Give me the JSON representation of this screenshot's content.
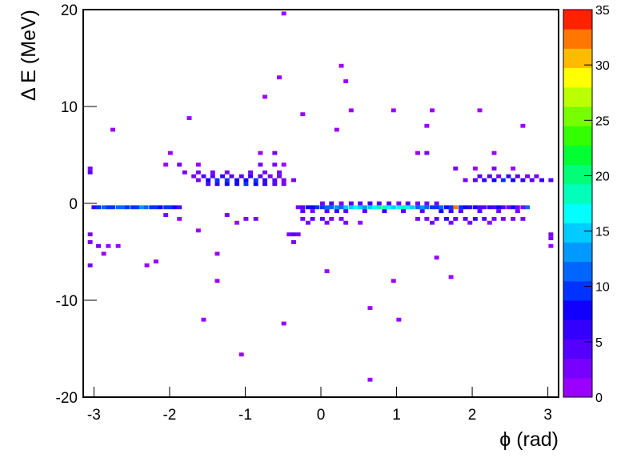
{
  "chart_data": {
    "type": "heatmap",
    "xlabel": "ϕ (rad)",
    "ylabel": "Δ E (MeV)",
    "xlim": [
      -3.1416,
      3.1416
    ],
    "xticks": [
      -3,
      -2,
      -1,
      0,
      1,
      2,
      3
    ],
    "ylim": [
      -20,
      20
    ],
    "yticks": [
      -20,
      -10,
      0,
      10,
      20
    ],
    "zlim": [
      0,
      35
    ],
    "zticks": [
      0,
      5,
      10,
      15,
      20,
      25,
      30,
      35
    ],
    "palette": [
      "#9900ff",
      "#7700ff",
      "#5500ff",
      "#3300ff",
      "#1100ff",
      "#0033ff",
      "#0066ff",
      "#0099ff",
      "#00ccff",
      "#00ffff",
      "#00ffbb",
      "#00ff77",
      "#00ff33",
      "#33ff00",
      "#77ff00",
      "#bbff00",
      "#ffff00",
      "#ffbb00",
      "#ff7700",
      "#ff2200"
    ],
    "x": [
      -3.0,
      -2.94,
      -2.87,
      -2.81,
      -2.75,
      -2.68,
      -2.62,
      -2.56,
      -2.49,
      -2.43,
      -2.37,
      -2.31,
      -2.24,
      -2.18,
      -2.12,
      -2.05,
      -1.99,
      -1.93,
      -1.87,
      -0.3,
      -0.24,
      -0.17,
      -0.11,
      -0.05,
      0.02,
      0.08,
      0.14,
      0.21,
      0.27,
      0.33,
      0.4,
      0.46,
      0.52,
      0.58,
      0.65,
      0.71,
      0.77,
      0.84,
      0.9,
      0.96,
      1.03,
      1.09,
      1.15,
      1.21,
      1.28,
      1.34,
      1.4,
      1.47,
      1.53,
      1.59,
      1.66,
      1.72,
      1.78,
      1.85,
      1.91,
      1.97,
      2.04,
      2.1,
      2.16,
      2.23,
      2.29,
      2.35,
      2.41,
      2.48,
      2.54,
      2.6,
      2.67,
      2.73,
      0.02,
      0.14,
      0.27,
      0.4,
      0.52,
      0.65,
      0.77,
      0.9,
      1.03,
      1.15,
      1.28,
      1.4,
      1.53,
      -0.24,
      -0.11,
      0.08,
      0.21,
      0.33,
      0.58,
      0.84,
      1.09,
      1.34,
      1.59,
      1.72,
      1.85,
      2.1,
      2.35,
      2.6,
      -0.24,
      -0.11,
      0.02,
      0.14,
      0.27,
      1.28,
      1.4,
      1.53,
      1.66,
      1.78,
      1.91,
      2.04,
      2.16,
      2.29,
      2.41,
      2.54,
      2.67,
      -0.17,
      0.08,
      0.33,
      0.52,
      1.47,
      1.72,
      1.97,
      2.23,
      -1.49,
      -1.37,
      -1.24,
      -1.11,
      -0.99,
      -0.86,
      -0.74,
      -0.61,
      -0.49,
      -1.62,
      -1.49,
      -1.37,
      -1.24,
      -1.11,
      -0.99,
      -0.86,
      -0.74,
      -0.61,
      -0.49,
      -0.36,
      -1.68,
      -1.55,
      -1.43,
      -1.3,
      -1.18,
      -1.05,
      -0.93,
      -0.8,
      -0.67,
      -0.55,
      -1.8,
      -1.62,
      -1.43,
      -1.24,
      -0.93,
      -0.74,
      -0.55,
      -2.05,
      -1.87,
      -1.62,
      -0.8,
      -0.61,
      -0.49,
      -0.8,
      -0.61,
      -1.99,
      1.91,
      2.04,
      2.16,
      2.29,
      2.41,
      2.54,
      2.67,
      2.79,
      2.92,
      3.04,
      2.1,
      2.23,
      2.35,
      2.48,
      2.6,
      2.73,
      2.85,
      1.78,
      2.04,
      2.29,
      2.54,
      1.28,
      1.4,
      2.29,
      -3.05,
      -3.05,
      -3.05,
      -3.05,
      3.04,
      3.04,
      3.04,
      -2.94,
      -2.81,
      -2.68,
      -0.42,
      -0.36,
      -0.3,
      -0.36,
      -1.24,
      -1.11,
      -0.99,
      -0.86,
      -2.05,
      -1.87,
      -1.62,
      -2.3,
      -2.18,
      -1.37,
      -1.37,
      -1.55,
      -1.05,
      -0.49,
      0.08,
      0.65,
      0.65,
      0.96,
      1.03,
      1.53,
      1.72,
      -3.05,
      -2.87,
      -0.49,
      -0.55,
      0.27,
      0.33,
      -0.74,
      0.4,
      -0.24,
      -1.74,
      0.96,
      1.47,
      2.1,
      2.67,
      -2.75,
      0.21,
      1.4
    ],
    "y": [
      -0.4,
      -0.4,
      -0.4,
      -0.4,
      -0.4,
      -0.4,
      -0.4,
      -0.4,
      -0.4,
      -0.4,
      -0.4,
      -0.4,
      -0.4,
      -0.4,
      -0.4,
      -0.4,
      -0.4,
      -0.4,
      -0.4,
      -0.4,
      -0.4,
      -0.4,
      -0.4,
      -0.4,
      -0.4,
      -0.4,
      -0.4,
      -0.4,
      -0.4,
      -0.4,
      -0.4,
      -0.4,
      -0.4,
      -0.4,
      -0.4,
      -0.4,
      -0.4,
      -0.4,
      -0.4,
      -0.4,
      -0.4,
      -0.4,
      -0.4,
      -0.4,
      -0.4,
      -0.4,
      -0.4,
      -0.4,
      -0.4,
      -0.4,
      -0.4,
      -0.4,
      -0.4,
      -0.4,
      -0.4,
      -0.4,
      -0.4,
      -0.4,
      -0.4,
      -0.4,
      -0.4,
      -0.4,
      -0.4,
      -0.4,
      -0.4,
      -0.4,
      -0.4,
      -0.4,
      0,
      0,
      0,
      0,
      0,
      0,
      0,
      0,
      0,
      0,
      0,
      0,
      0,
      -0.8,
      -0.8,
      -0.8,
      -0.8,
      -0.8,
      -0.8,
      -0.8,
      -0.8,
      -0.8,
      -0.8,
      -0.8,
      -0.8,
      -0.8,
      -0.8,
      -0.8,
      -1.6,
      -1.6,
      -1.6,
      -1.6,
      -1.6,
      -1.6,
      -1.6,
      -1.6,
      -1.6,
      -1.6,
      -1.6,
      -1.6,
      -1.6,
      -1.6,
      -1.6,
      -1.6,
      -1.6,
      -2.0,
      -2.0,
      -2.0,
      -2.0,
      -2.0,
      -2.0,
      -2.0,
      -2.0,
      2.0,
      2.0,
      2.0,
      2.0,
      2.0,
      2.0,
      2.0,
      2.0,
      2.0,
      2.4,
      2.4,
      2.4,
      2.4,
      2.4,
      2.4,
      2.4,
      2.4,
      2.4,
      2.4,
      2.4,
      2.8,
      2.8,
      2.8,
      2.8,
      2.8,
      2.8,
      2.8,
      2.8,
      2.8,
      2.8,
      3.2,
      3.2,
      3.2,
      3.2,
      3.2,
      3.2,
      3.2,
      4.0,
      4.0,
      4.0,
      4.0,
      4.0,
      4.0,
      5.2,
      5.2,
      5.2,
      2.4,
      2.4,
      2.4,
      2.4,
      2.4,
      2.4,
      2.4,
      2.4,
      2.4,
      2.4,
      2.8,
      2.8,
      2.8,
      2.8,
      2.8,
      2.8,
      2.8,
      3.6,
      3.6,
      3.6,
      3.6,
      5.2,
      5.2,
      5.2,
      3.6,
      3.2,
      -3.2,
      -4.0,
      -3.2,
      -3.6,
      -4.4,
      -4.4,
      -4.4,
      -4.4,
      -3.2,
      -3.2,
      -3.2,
      -4.0,
      -1.2,
      -2.0,
      -1.6,
      -1.6,
      -1.2,
      -1.6,
      -2.8,
      -6.4,
      -6.0,
      -5.2,
      -8.0,
      -12.0,
      -15.6,
      -12.4,
      -7.0,
      -10.8,
      -18.2,
      -8.0,
      -12.0,
      -5.6,
      -7.6,
      -6.4,
      -5.2,
      19.6,
      13.0,
      14.2,
      12.6,
      11.0,
      9.6,
      9.2,
      8.8,
      9.6,
      9.6,
      9.6,
      8.0,
      7.6,
      7.6,
      8.0
    ],
    "values": [
      6,
      9,
      11,
      10,
      9,
      12,
      11,
      10,
      9,
      10,
      13,
      12,
      10,
      9,
      8,
      10,
      9,
      7,
      4,
      3,
      5,
      7,
      8,
      9,
      10,
      11,
      12,
      13,
      12,
      14,
      15,
      16,
      14,
      13,
      15,
      17,
      18,
      19,
      16,
      15,
      17,
      18,
      16,
      14,
      12,
      13,
      11,
      10,
      9,
      12,
      8,
      10,
      33,
      9,
      7,
      6,
      8,
      5,
      4,
      6,
      5,
      7,
      4,
      3,
      8,
      3,
      2,
      11,
      3,
      4,
      3,
      5,
      4,
      6,
      5,
      4,
      3,
      4,
      3,
      2,
      3,
      4,
      3,
      5,
      6,
      4,
      5,
      6,
      4,
      5,
      7,
      6,
      5,
      4,
      3,
      2,
      3,
      5,
      4,
      3,
      2,
      2,
      3,
      4,
      6,
      5,
      4,
      6,
      5,
      3,
      2,
      3,
      2,
      2,
      3,
      2,
      1,
      2,
      3,
      2,
      1,
      4,
      6,
      8,
      7,
      9,
      8,
      6,
      5,
      3,
      3,
      7,
      9,
      10,
      8,
      7,
      9,
      6,
      4,
      3,
      2,
      2,
      4,
      5,
      6,
      4,
      5,
      6,
      4,
      3,
      2,
      2,
      3,
      2,
      3,
      2,
      3,
      2,
      1,
      2,
      1,
      2,
      3,
      1,
      1,
      2,
      1,
      3,
      5,
      6,
      8,
      9,
      7,
      6,
      5,
      6,
      4,
      4,
      5,
      3,
      6,
      4,
      3,
      2,
      2,
      1,
      2,
      1,
      1,
      2,
      1,
      3,
      4,
      2,
      3,
      3,
      2,
      1,
      2,
      1,
      1,
      2,
      4,
      3,
      2,
      2,
      1,
      3,
      2,
      2,
      1,
      1,
      1,
      1,
      1,
      1,
      1,
      1,
      1,
      1,
      1,
      1,
      1,
      1,
      1,
      1,
      2,
      1,
      1,
      1,
      1,
      1,
      1,
      1,
      1,
      1,
      1,
      1,
      1,
      1,
      1,
      1,
      1
    ]
  }
}
